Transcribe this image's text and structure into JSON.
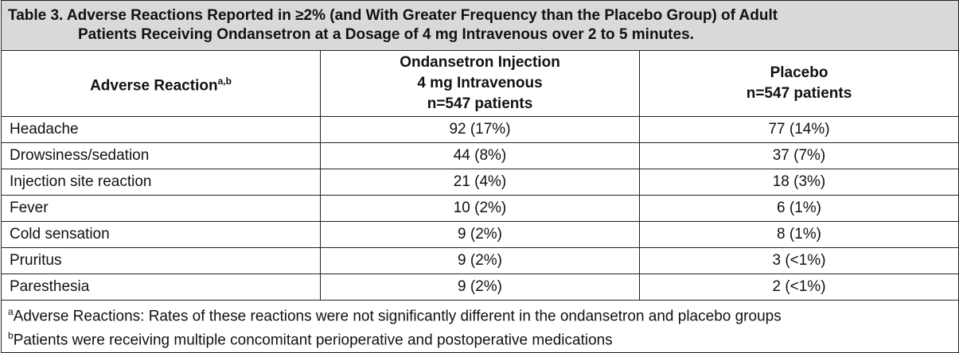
{
  "title": [
    "Table 3. Adverse Reactions Reported in ≥2% (and With Greater Frequency than the Placebo Group) of Adult",
    "Patients Receiving Ondansetron at a Dosage of 4 mg Intravenous over 2 to 5 minutes."
  ],
  "header": [
    {
      "lines": [
        "Adverse Reaction"
      ],
      "sup": "a,b"
    },
    {
      "lines": [
        "Ondansetron Injection",
        "4 mg Intravenous",
        "n=547 patients"
      ]
    },
    {
      "lines": [
        "Placebo",
        "n=547 patients"
      ]
    }
  ],
  "rows": [
    [
      "Headache",
      "92 (17%)",
      "77 (14%)"
    ],
    [
      "Drowsiness/sedation",
      "44 (8%)",
      "37 (7%)"
    ],
    [
      "Injection site reaction",
      "21 (4%)",
      "18 (3%)"
    ],
    [
      "Fever",
      "10 (2%)",
      "6 (1%)"
    ],
    [
      "Cold sensation",
      "9 (2%)",
      "8 (1%)"
    ],
    [
      "Pruritus",
      "9 (2%)",
      "3 (<1%)"
    ],
    [
      "Paresthesia",
      "9 (2%)",
      "2 (<1%)"
    ]
  ],
  "footnotes": [
    {
      "mark": "a",
      "text": "Adverse Reactions: Rates of these reactions were not significantly different in the ondansetron and placebo groups"
    },
    {
      "mark": "b",
      "text": "Patients were receiving multiple concomitant perioperative and postoperative medications"
    }
  ]
}
